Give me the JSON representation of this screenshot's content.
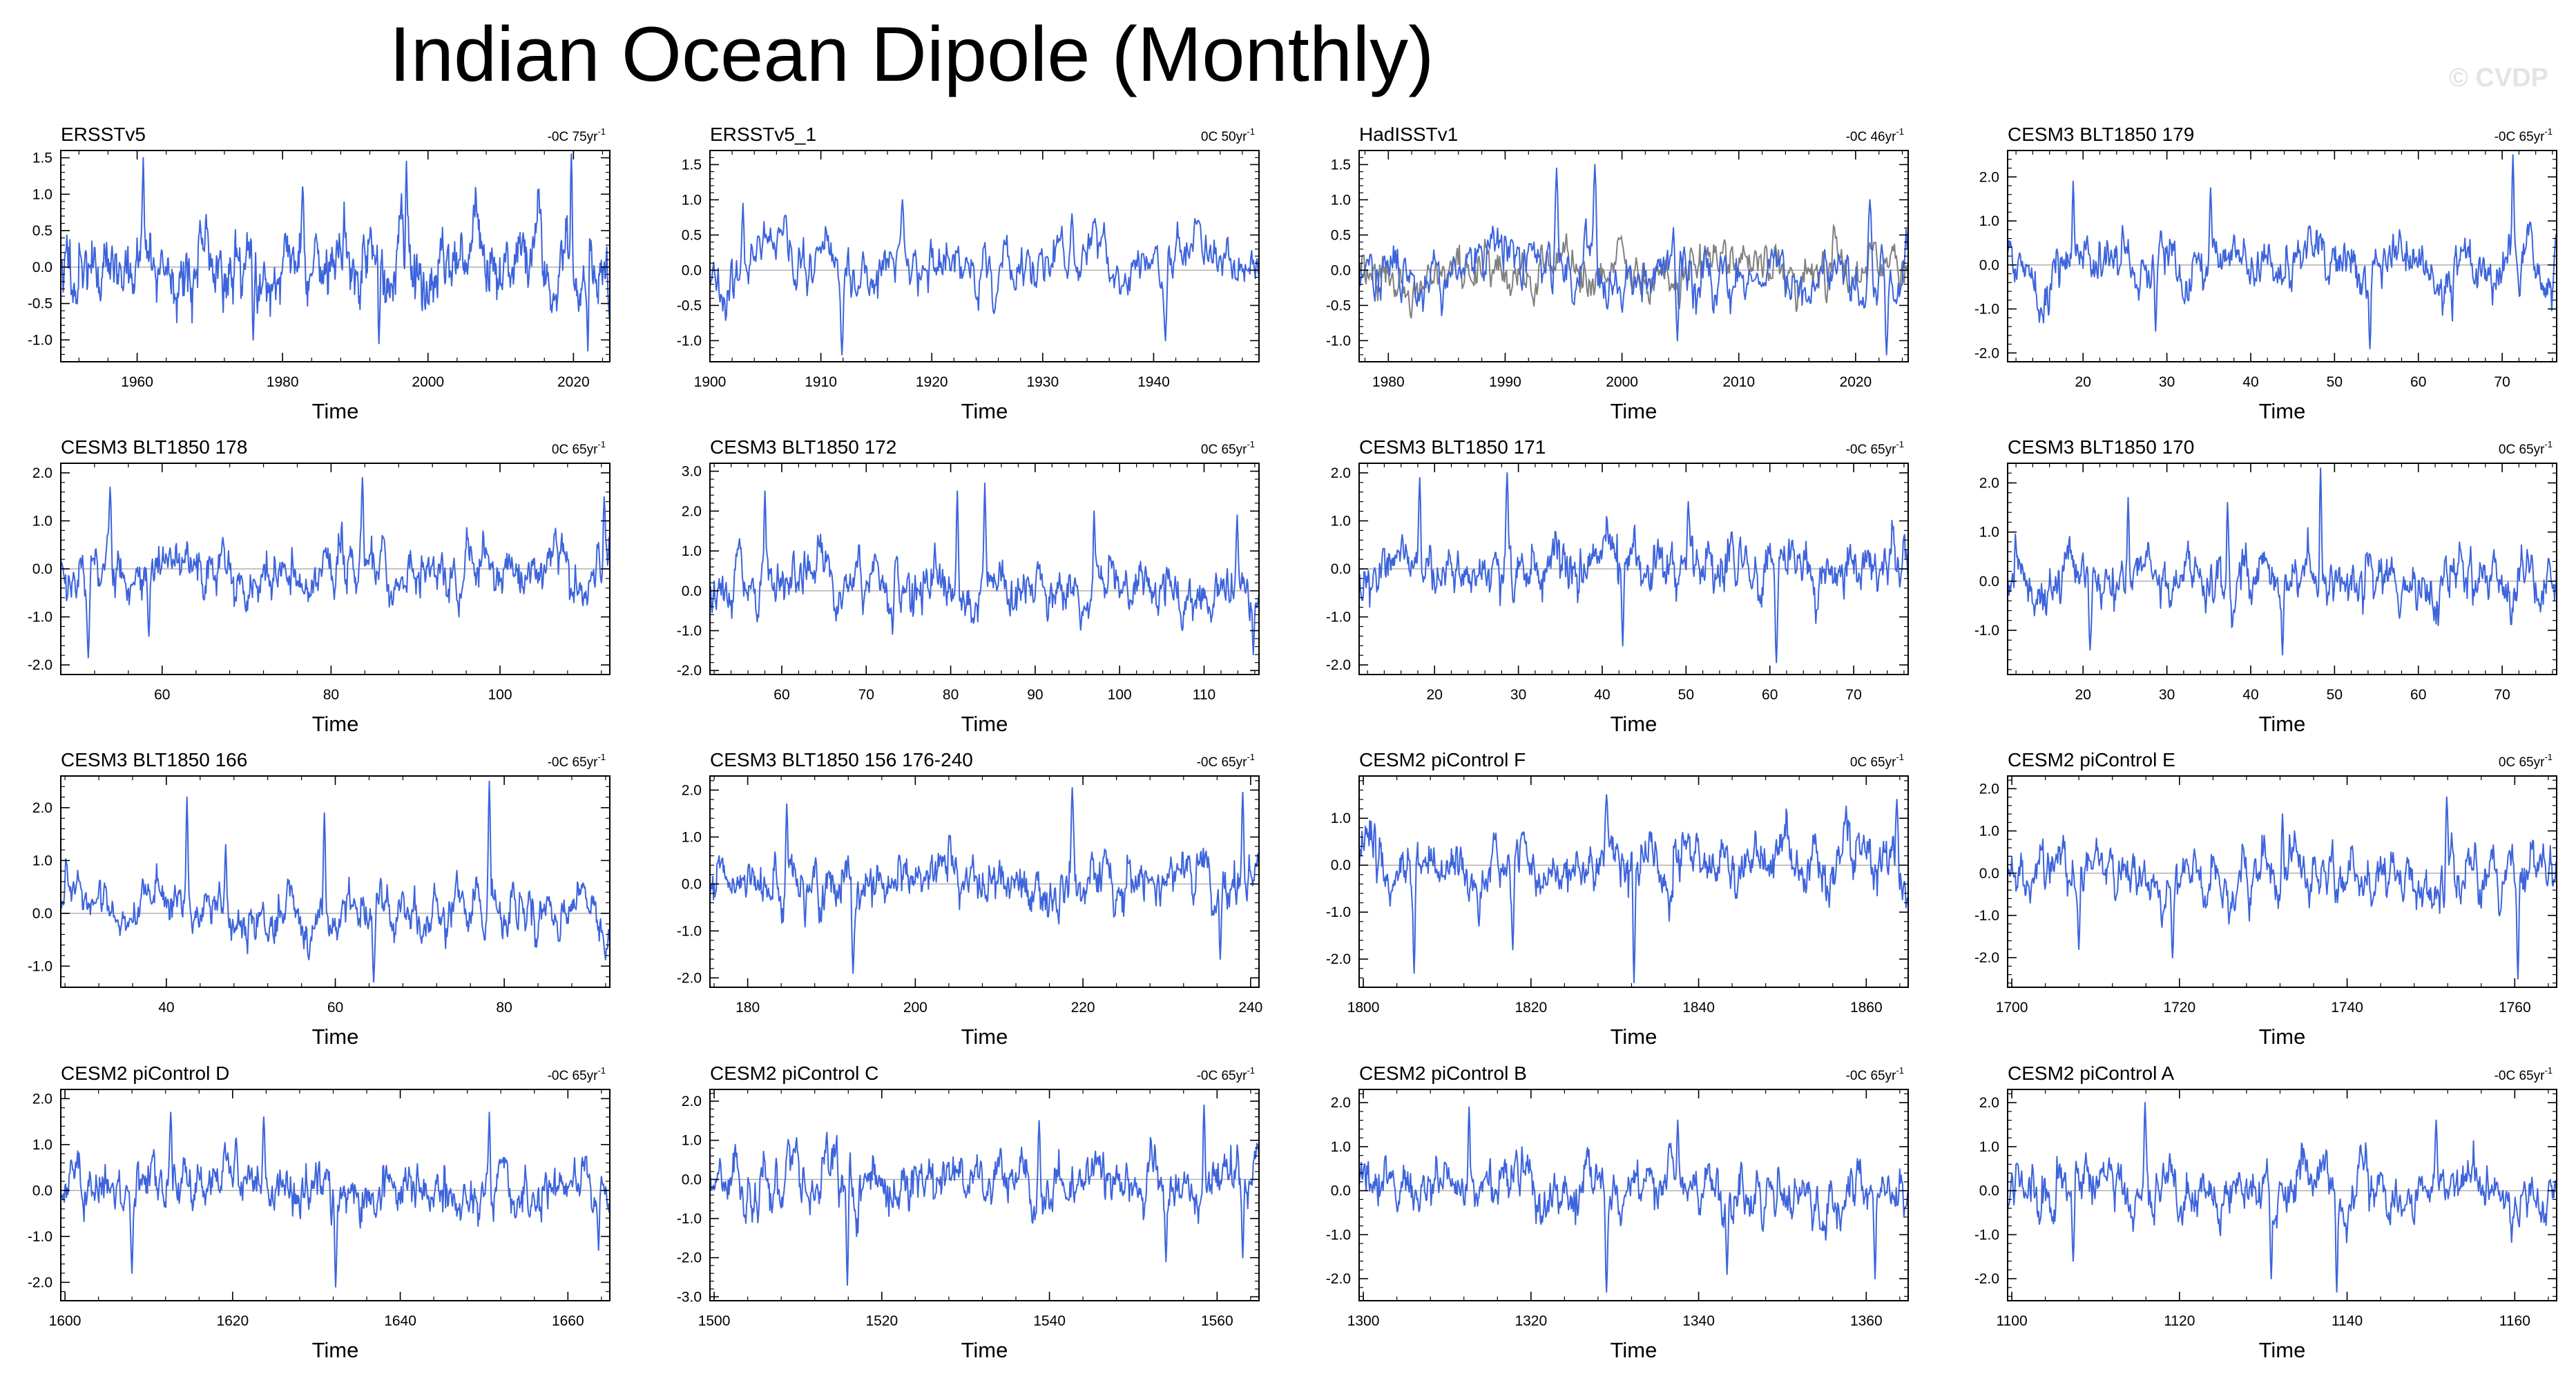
{
  "title": "Indian Ocean Dipole (Monthly)",
  "watermark": "© CVDP",
  "colors": {
    "series": "#3d64dc",
    "overlay": "#808080",
    "zero": "#b0b0b0",
    "axis": "#000000"
  },
  "chart_data": [
    {
      "type": "line",
      "title": "ERSSTv5",
      "trend": "-0C 75yr",
      "trend_sup": "-1",
      "xlabel": "Time",
      "xlim": [
        1949.5,
        2025
      ],
      "ylim": [
        -1.3,
        1.6
      ],
      "xticks": [
        1960,
        1980,
        2000,
        2020
      ],
      "yticks": [
        1.5,
        1.0,
        0.5,
        0.0,
        -0.5,
        -1.0
      ],
      "ytick_labels": [
        "1.5",
        "1.0",
        "0.5",
        "0.0",
        "-0.5",
        "-1.0"
      ],
      "n": 900,
      "seed": 11,
      "amp": 0.38,
      "smooth": 0.55,
      "peaks": [
        [
          0.15,
          1.5
        ],
        [
          0.44,
          1.1
        ],
        [
          0.63,
          1.45
        ],
        [
          0.93,
          1.6
        ],
        [
          0.96,
          -1.15
        ],
        [
          0.35,
          -1.0
        ],
        [
          0.58,
          -1.05
        ]
      ],
      "overlay": false
    },
    {
      "type": "line",
      "title": "ERSSTv5_1",
      "trend": "0C 50yr",
      "trend_sup": "-1",
      "xlabel": "Time",
      "xlim": [
        1900,
        1949.5
      ],
      "ylim": [
        -1.3,
        1.7
      ],
      "xticks": [
        1900,
        1910,
        1920,
        1930,
        1940
      ],
      "yticks": [
        1.5,
        1.0,
        0.5,
        0.0,
        -0.5,
        -1.0
      ],
      "ytick_labels": [
        "1.5",
        "1.0",
        "0.5",
        "0.0",
        "-0.5",
        "-1.0"
      ],
      "n": 600,
      "seed": 23,
      "amp": 0.3,
      "smooth": 0.55,
      "peaks": [
        [
          0.06,
          0.95
        ],
        [
          0.35,
          1.0
        ],
        [
          0.24,
          -1.2
        ],
        [
          0.83,
          -1.0
        ],
        [
          0.66,
          0.8
        ]
      ],
      "overlay": false
    },
    {
      "type": "line",
      "title": "HadISSTv1",
      "trend": "-0C 46yr",
      "trend_sup": "-1",
      "xlabel": "Time",
      "xlim": [
        1977.5,
        2024.5
      ],
      "ylim": [
        -1.3,
        1.7
      ],
      "xticks": [
        1980,
        1990,
        2000,
        2010,
        2020
      ],
      "yticks": [
        1.5,
        1.0,
        0.5,
        0.0,
        -0.5,
        -1.0
      ],
      "ytick_labels": [
        "1.5",
        "1.0",
        "0.5",
        "0.0",
        "-0.5",
        "-1.0"
      ],
      "n": 560,
      "seed": 37,
      "amp": 0.32,
      "smooth": 0.55,
      "peaks": [
        [
          0.36,
          1.45
        ],
        [
          0.43,
          1.5
        ],
        [
          0.93,
          1.0
        ],
        [
          0.96,
          -1.2
        ],
        [
          0.58,
          -1.0
        ]
      ],
      "overlay": true
    },
    {
      "type": "line",
      "title": "CESM3 BLT1850 179",
      "trend": "-0C 65yr",
      "trend_sup": "-1",
      "xlabel": "Time",
      "xlim": [
        11,
        76.5
      ],
      "ylim": [
        -2.2,
        2.6
      ],
      "xticks": [
        20,
        30,
        40,
        50,
        60,
        70
      ],
      "yticks": [
        2.0,
        1.0,
        0.0,
        -1.0,
        -2.0
      ],
      "ytick_labels": [
        "2.0",
        "1.0",
        "0.0",
        "-1.0",
        "-2.0"
      ],
      "n": 780,
      "seed": 41,
      "amp": 0.45,
      "smooth": 0.65,
      "peaks": [
        [
          0.12,
          1.9
        ],
        [
          0.37,
          1.75
        ],
        [
          0.92,
          2.5
        ],
        [
          0.66,
          -1.9
        ],
        [
          0.27,
          -1.5
        ]
      ],
      "overlay": false
    },
    {
      "type": "line",
      "title": "CESM3 BLT1850 178",
      "trend": "0C 65yr",
      "trend_sup": "-1",
      "xlabel": "Time",
      "xlim": [
        48,
        113
      ],
      "ylim": [
        -2.2,
        2.2
      ],
      "xticks": [
        60,
        80,
        100
      ],
      "yticks": [
        2.0,
        1.0,
        0.0,
        -1.0,
        -2.0
      ],
      "ytick_labels": [
        "2.0",
        "1.0",
        "0.0",
        "-1.0",
        "-2.0"
      ],
      "n": 780,
      "seed": 53,
      "amp": 0.45,
      "smooth": 0.65,
      "peaks": [
        [
          0.05,
          -1.85
        ],
        [
          0.09,
          1.7
        ],
        [
          0.55,
          1.9
        ],
        [
          0.99,
          1.5
        ],
        [
          0.16,
          -1.4
        ]
      ],
      "overlay": false
    },
    {
      "type": "line",
      "title": "CESM3 BLT1850 172",
      "trend": "0C 65yr",
      "trend_sup": "-1",
      "xlabel": "Time",
      "xlim": [
        51.5,
        116.5
      ],
      "ylim": [
        -2.1,
        3.2
      ],
      "xticks": [
        60,
        70,
        80,
        90,
        100,
        110
      ],
      "yticks": [
        3.0,
        2.0,
        1.0,
        0.0,
        -1.0,
        -2.0
      ],
      "ytick_labels": [
        "3.0",
        "2.0",
        "1.0",
        "0.0",
        "-1.0",
        "-2.0"
      ],
      "n": 780,
      "seed": 67,
      "amp": 0.5,
      "smooth": 0.65,
      "peaks": [
        [
          0.1,
          2.5
        ],
        [
          0.45,
          2.5
        ],
        [
          0.5,
          2.7
        ],
        [
          0.7,
          2.0
        ],
        [
          0.96,
          1.9
        ],
        [
          0.99,
          -1.6
        ]
      ],
      "overlay": false
    },
    {
      "type": "line",
      "title": "CESM3 BLT1850 171",
      "trend": "-0C 65yr",
      "trend_sup": "-1",
      "xlabel": "Time",
      "xlim": [
        11,
        76.5
      ],
      "ylim": [
        -2.2,
        2.2
      ],
      "xticks": [
        20,
        30,
        40,
        50,
        60,
        70
      ],
      "yticks": [
        2.0,
        1.0,
        0.0,
        -1.0,
        -2.0
      ],
      "ytick_labels": [
        "2.0",
        "1.0",
        "0.0",
        "-1.0",
        "-2.0"
      ],
      "n": 780,
      "seed": 71,
      "amp": 0.45,
      "smooth": 0.65,
      "peaks": [
        [
          0.27,
          2.0
        ],
        [
          0.11,
          1.9
        ],
        [
          0.6,
          1.4
        ],
        [
          0.48,
          -1.6
        ],
        [
          0.76,
          -1.95
        ]
      ],
      "overlay": false
    },
    {
      "type": "line",
      "title": "CESM3 BLT1850 170",
      "trend": "0C 65yr",
      "trend_sup": "-1",
      "xlabel": "Time",
      "xlim": [
        11,
        76.5
      ],
      "ylim": [
        -1.9,
        2.4
      ],
      "xticks": [
        20,
        30,
        40,
        50,
        60,
        70
      ],
      "yticks": [
        2.0,
        1.0,
        0.0,
        -1.0
      ],
      "ytick_labels": [
        "2.0",
        "1.0",
        "0.0",
        "-1.0"
      ],
      "n": 780,
      "seed": 83,
      "amp": 0.42,
      "smooth": 0.65,
      "peaks": [
        [
          0.57,
          2.3
        ],
        [
          0.22,
          1.7
        ],
        [
          0.4,
          1.6
        ],
        [
          0.5,
          -1.5
        ],
        [
          0.15,
          -1.4
        ]
      ],
      "overlay": false
    },
    {
      "type": "line",
      "title": "CESM3 BLT1850 166",
      "trend": "-0C 65yr",
      "trend_sup": "-1",
      "xlabel": "Time",
      "xlim": [
        27.5,
        92.5
      ],
      "ylim": [
        -1.4,
        2.6
      ],
      "xticks": [
        40,
        60,
        80
      ],
      "yticks": [
        2.0,
        1.0,
        0.0,
        -1.0
      ],
      "ytick_labels": [
        "2.0",
        "1.0",
        "0.0",
        "-1.0"
      ],
      "n": 780,
      "seed": 97,
      "amp": 0.35,
      "smooth": 0.65,
      "peaks": [
        [
          0.23,
          2.2
        ],
        [
          0.48,
          1.9
        ],
        [
          0.78,
          2.5
        ],
        [
          0.3,
          1.3
        ],
        [
          0.57,
          -1.3
        ]
      ],
      "overlay": false
    },
    {
      "type": "line",
      "title": "CESM3 BLT1850 156 176-240",
      "trend": "-0C 65yr",
      "trend_sup": "-1",
      "xlabel": "Time",
      "xlim": [
        175.5,
        241
      ],
      "ylim": [
        -2.2,
        2.3
      ],
      "xticks": [
        180,
        200,
        220,
        240
      ],
      "yticks": [
        2.0,
        1.0,
        0.0,
        -1.0,
        -2.0
      ],
      "ytick_labels": [
        "2.0",
        "1.0",
        "0.0",
        "-1.0",
        "-2.0"
      ],
      "n": 780,
      "seed": 101,
      "amp": 0.45,
      "smooth": 0.65,
      "peaks": [
        [
          0.66,
          2.05
        ],
        [
          0.97,
          1.95
        ],
        [
          0.26,
          -1.9
        ],
        [
          0.14,
          1.7
        ],
        [
          0.93,
          -1.6
        ]
      ],
      "overlay": false
    },
    {
      "type": "line",
      "title": "CESM2 piControl F",
      "trend": "0C 65yr",
      "trend_sup": "-1",
      "xlabel": "Time",
      "xlim": [
        1799.5,
        1865
      ],
      "ylim": [
        -2.6,
        1.9
      ],
      "xticks": [
        1800,
        1820,
        1840,
        1860
      ],
      "yticks": [
        1.0,
        0.0,
        -1.0,
        -2.0
      ],
      "ytick_labels": [
        "1.0",
        "0.0",
        "-1.0",
        "-2.0"
      ],
      "n": 780,
      "seed": 113,
      "amp": 0.45,
      "smooth": 0.6,
      "peaks": [
        [
          0.1,
          -2.3
        ],
        [
          0.5,
          -2.5
        ],
        [
          0.45,
          1.5
        ],
        [
          0.98,
          1.4
        ],
        [
          0.28,
          -1.8
        ]
      ],
      "overlay": false
    },
    {
      "type": "line",
      "title": "CESM2 piControl E",
      "trend": "0C 65yr",
      "trend_sup": "-1",
      "xlabel": "Time",
      "xlim": [
        1699.5,
        1765
      ],
      "ylim": [
        -2.7,
        2.3
      ],
      "xticks": [
        1700,
        1720,
        1740,
        1760
      ],
      "yticks": [
        2.0,
        1.0,
        0.0,
        -1.0,
        -2.0
      ],
      "ytick_labels": [
        "2.0",
        "1.0",
        "0.0",
        "-1.0",
        "-2.0"
      ],
      "n": 780,
      "seed": 127,
      "amp": 0.45,
      "smooth": 0.6,
      "peaks": [
        [
          0.93,
          -2.5
        ],
        [
          0.3,
          -2.0
        ],
        [
          0.13,
          -1.8
        ],
        [
          0.8,
          1.8
        ],
        [
          0.5,
          1.4
        ]
      ],
      "overlay": false
    },
    {
      "type": "line",
      "title": "CESM2 piControl D",
      "trend": "-0C 65yr",
      "trend_sup": "-1",
      "xlabel": "Time",
      "xlim": [
        1599.5,
        1665
      ],
      "ylim": [
        -2.4,
        2.2
      ],
      "xticks": [
        1600,
        1620,
        1640,
        1660
      ],
      "yticks": [
        2.0,
        1.0,
        0.0,
        -1.0,
        -2.0
      ],
      "ytick_labels": [
        "2.0",
        "1.0",
        "0.0",
        "-1.0",
        "-2.0"
      ],
      "n": 780,
      "seed": 131,
      "amp": 0.45,
      "smooth": 0.6,
      "peaks": [
        [
          0.2,
          1.7
        ],
        [
          0.37,
          1.6
        ],
        [
          0.5,
          -2.1
        ],
        [
          0.78,
          1.7
        ],
        [
          0.98,
          -1.3
        ],
        [
          0.13,
          -1.8
        ]
      ],
      "overlay": false
    },
    {
      "type": "line",
      "title": "CESM2 piControl C",
      "trend": "-0C 65yr",
      "trend_sup": "-1",
      "xlabel": "Time",
      "xlim": [
        1499.5,
        1565
      ],
      "ylim": [
        -3.1,
        2.3
      ],
      "xticks": [
        1500,
        1520,
        1540,
        1560
      ],
      "yticks": [
        2.0,
        1.0,
        0.0,
        -1.0,
        -2.0,
        -3.0
      ],
      "ytick_labels": [
        "2.0",
        "1.0",
        "0.0",
        "-1.0",
        "-2.0",
        "-3.0"
      ],
      "n": 780,
      "seed": 139,
      "amp": 0.55,
      "smooth": 0.6,
      "peaks": [
        [
          0.25,
          -2.7
        ],
        [
          0.83,
          -2.1
        ],
        [
          0.9,
          1.9
        ],
        [
          0.97,
          -2.0
        ],
        [
          0.6,
          1.5
        ]
      ],
      "overlay": false
    },
    {
      "type": "line",
      "title": "CESM2 piControl B",
      "trend": "-0C 65yr",
      "trend_sup": "-1",
      "xlabel": "Time",
      "xlim": [
        1299.5,
        1365
      ],
      "ylim": [
        -2.5,
        2.3
      ],
      "xticks": [
        1300,
        1320,
        1340,
        1360
      ],
      "yticks": [
        2.0,
        1.0,
        0.0,
        -1.0,
        -2.0
      ],
      "ytick_labels": [
        "2.0",
        "1.0",
        "0.0",
        "-1.0",
        "-2.0"
      ],
      "n": 780,
      "seed": 149,
      "amp": 0.45,
      "smooth": 0.6,
      "peaks": [
        [
          0.2,
          1.9
        ],
        [
          0.45,
          -2.3
        ],
        [
          0.67,
          -1.9
        ],
        [
          0.94,
          -2.0
        ],
        [
          0.58,
          1.6
        ]
      ],
      "overlay": false
    },
    {
      "type": "line",
      "title": "CESM2 piControl A",
      "trend": "-0C 65yr",
      "trend_sup": "-1",
      "xlabel": "Time",
      "xlim": [
        1099.5,
        1165
      ],
      "ylim": [
        -2.5,
        2.3
      ],
      "xticks": [
        1100,
        1120,
        1140,
        1160
      ],
      "yticks": [
        2.0,
        1.0,
        0.0,
        -1.0,
        -2.0
      ],
      "ytick_labels": [
        "2.0",
        "1.0",
        "0.0",
        "-1.0",
        "-2.0"
      ],
      "n": 780,
      "seed": 157,
      "amp": 0.45,
      "smooth": 0.6,
      "peaks": [
        [
          0.25,
          2.0
        ],
        [
          0.6,
          -2.3
        ],
        [
          0.48,
          -2.0
        ],
        [
          0.12,
          -1.6
        ],
        [
          0.78,
          1.6
        ]
      ],
      "overlay": false
    }
  ]
}
